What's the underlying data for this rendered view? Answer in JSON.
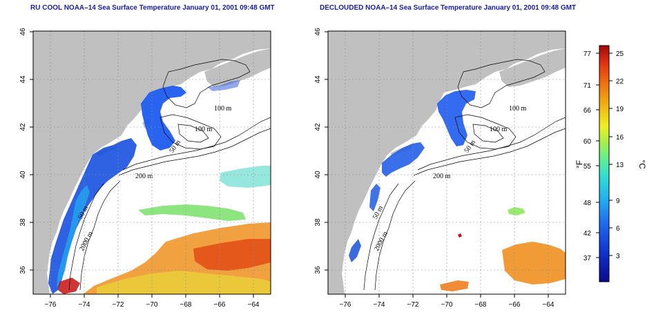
{
  "panels": [
    {
      "id": "left",
      "title": "RU COOL NOAA–14 Sea Surface Temperature January 01, 2001 09:48 GMT",
      "isobath_labels": [
        "100 m",
        "100 m",
        "50 m",
        "200 m",
        "50 m",
        "2000 m"
      ]
    },
    {
      "id": "right",
      "title": "DECLOUDED NOAA–14 Sea Surface Temperature January 01, 2001 09:48 GMT",
      "isobath_labels": [
        "100 m",
        "100 m",
        "50 m",
        "200 m",
        "50 m",
        "2000 m"
      ]
    }
  ],
  "axes": {
    "lon_ticks": [
      "−76",
      "−74",
      "−72",
      "−70",
      "−68",
      "−66",
      "−64"
    ],
    "lat_ticks": [
      "36",
      "38",
      "40",
      "42",
      "44",
      "46"
    ],
    "lon_range": [
      -77,
      -63
    ],
    "lat_range": [
      35,
      46
    ],
    "grid": "dashed"
  },
  "colorbar": {
    "fahrenheit_ticks": [
      "77",
      "71",
      "66",
      "60",
      "55",
      "48",
      "42",
      "37"
    ],
    "celsius_ticks": [
      "25",
      "22",
      "19",
      "16",
      "13",
      "9",
      "6",
      "3"
    ],
    "fahrenheit_unit": "°F",
    "celsius_unit": "°C",
    "colors": [
      "#0a0a8a",
      "#1030d0",
      "#1e6cf0",
      "#22b0f0",
      "#30e0d0",
      "#60f090",
      "#b0f040",
      "#f0f020",
      "#f0b010",
      "#f07010",
      "#e03010",
      "#a00808"
    ]
  },
  "colors": {
    "land": "#c0c0c0",
    "ocean_nodata": "#ffffff",
    "title_text": "#1a1aa6",
    "isobath": "#000000"
  }
}
